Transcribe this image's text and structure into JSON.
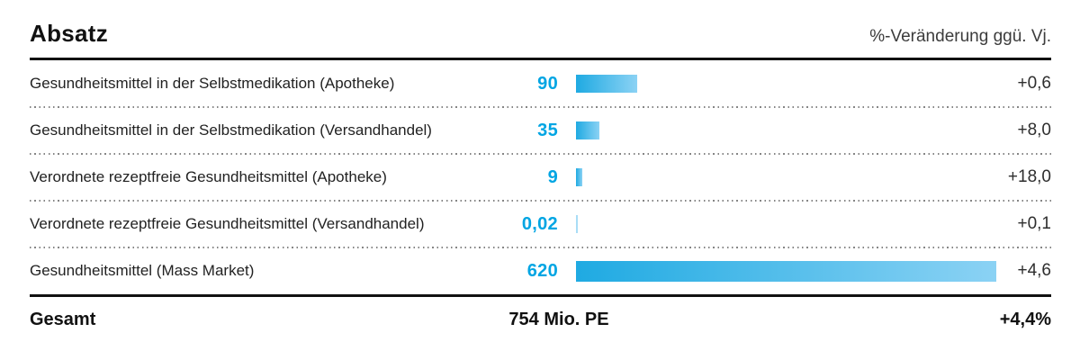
{
  "header": {
    "title": "Absatz",
    "right_label": "%-Veränderung ggü. Vj."
  },
  "chart_data": {
    "type": "bar",
    "orientation": "horizontal",
    "title": "Absatz",
    "unit": "Mio. PE",
    "categories": [
      "Gesundheitsmittel in der Selbstmedikation (Apotheke)",
      "Gesundheitsmittel in der Selbstmedikation (Versandhandel)",
      "Verordnete rezeptfreie Gesundheitsmittel (Apotheke)",
      "Verordnete rezeptfreie Gesundheitsmittel (Versandhandel)",
      "Gesundheitsmittel (Mass Market)"
    ],
    "values": [
      90,
      35,
      9,
      0.02,
      620
    ],
    "value_labels": [
      "90",
      "35",
      "9",
      "0,02",
      "620"
    ],
    "change_header": "%-Veränderung ggü. Vj.",
    "change_values_pct": [
      0.6,
      8.0,
      18.0,
      0.1,
      4.6
    ],
    "change_labels": [
      "+0,6",
      "+8,0",
      "+18,0",
      "+0,1",
      "+4,6"
    ],
    "xlim": [
      0,
      620
    ],
    "grid": false,
    "legend": false,
    "total": {
      "label": "Gesamt",
      "value": 754,
      "display": "754 Mio. PE",
      "change_label": "+4,4%"
    }
  },
  "footer": {
    "label": "Gesamt",
    "total": "754 Mio. PE",
    "change": "+4,4%"
  },
  "colors": {
    "accent_blue": "#00a5e3",
    "bar_gradient_start": "#1faae2",
    "bar_gradient_end": "#8bd2f4",
    "bar_hairline": "#a9ddf6",
    "rule_black": "#111111",
    "separator_dot_gray": "#858585",
    "text_dark": "#1f1f1f"
  }
}
